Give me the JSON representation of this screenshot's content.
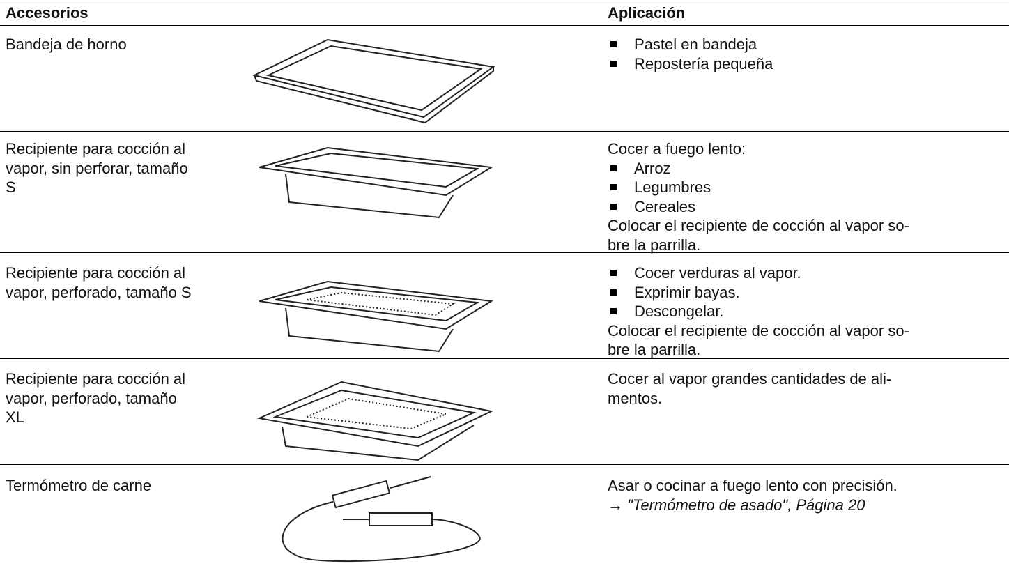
{
  "table": {
    "header": [
      "Accesorios",
      "Aplicación"
    ],
    "rows": [
      {
        "accessory": [
          "Bandeja de horno"
        ],
        "application": [
          {
            "bullet": "Pastel en bandeja"
          },
          {
            "bullet": "Repostería pequeña"
          }
        ]
      },
      {
        "accessory": [
          "Recipiente para cocción al",
          "vapor, sin perforar, tamaño",
          "S"
        ],
        "application": [
          {
            "text": "Cocer a fuego lento:"
          },
          {
            "bullet": "Arroz"
          },
          {
            "bullet": "Legumbres"
          },
          {
            "bullet": "Cereales"
          },
          {
            "text": "Colocar el recipiente de cocción al vapor so-"
          },
          {
            "text": "bre la parrilla."
          }
        ]
      },
      {
        "accessory": [
          "Recipiente para cocción al",
          "vapor, perforado, tamaño S"
        ],
        "application": [
          {
            "bullet": "Cocer verduras al vapor."
          },
          {
            "bullet": "Exprimir bayas."
          },
          {
            "bullet": "Descongelar."
          },
          {
            "text": "Colocar el recipiente de cocción al vapor so-"
          },
          {
            "text": "bre la parrilla."
          }
        ]
      },
      {
        "accessory": [
          "Recipiente para cocción al",
          "vapor, perforado, tamaño",
          "XL"
        ],
        "application": [
          {
            "text": "Cocer al vapor grandes cantidades de ali-"
          },
          {
            "text": "mentos."
          }
        ]
      },
      {
        "accessory": [
          "Termómetro de carne"
        ],
        "application": [
          {
            "text": "Asar o cocinar a fuego lento con precisión."
          },
          {
            "link": "→ \"Termómetro de asado\", Página 20"
          }
        ]
      }
    ]
  }
}
